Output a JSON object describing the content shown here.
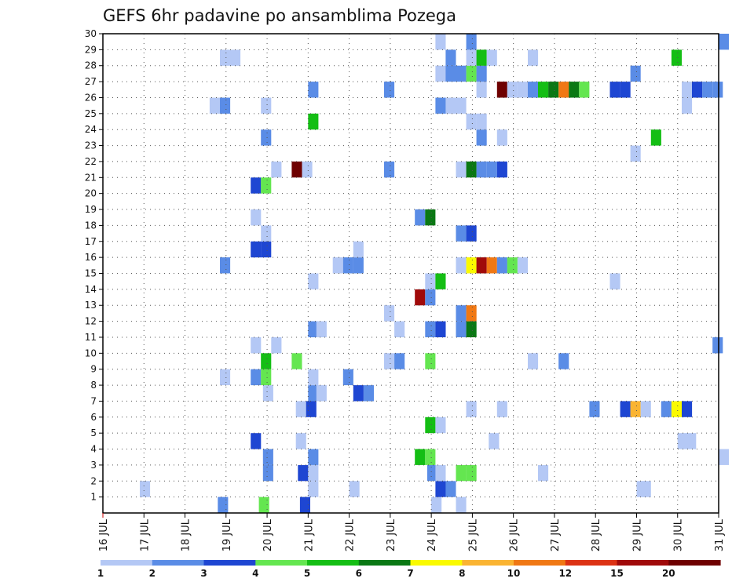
{
  "chart_data": {
    "type": "heatmap",
    "title": "GEFS 6hr padavine po ansamblima Pozega",
    "y": {
      "min": 1,
      "max": 30,
      "labels": [
        "1",
        "2",
        "3",
        "4",
        "5",
        "6",
        "7",
        "8",
        "9",
        "10",
        "11",
        "12",
        "13",
        "14",
        "15",
        "16",
        "17",
        "18",
        "19",
        "20",
        "21",
        "22",
        "23",
        "24",
        "25",
        "26",
        "27",
        "28",
        "29",
        "30"
      ]
    },
    "x": {
      "start_day": 16,
      "end_day": 31,
      "steps_per_day": 4,
      "labels": [
        "16 JUL",
        "17 JUL",
        "18 JUL",
        "19 JUL",
        "20 JUL",
        "21 JUL",
        "22 JUL",
        "23 JUL",
        "24 JUL",
        "25 JUL",
        "26 JUL",
        "27 JUL",
        "28 JUL",
        "29 JUL",
        "30 JUL",
        "31 JUL"
      ]
    },
    "grid": true,
    "colorbar": {
      "ticks": [
        "1",
        "2",
        "3",
        "4",
        "5",
        "6",
        "7",
        "8",
        "10",
        "12",
        "15",
        "20"
      ],
      "colors": [
        "#b4c8f5",
        "#5a8ce6",
        "#1e46d2",
        "#64e650",
        "#14be14",
        "#0a7814",
        "#fafa00",
        "#fab432",
        "#f07814",
        "#dc3214",
        "#a00a0a",
        "#6e0000"
      ]
    },
    "cells": [
      {
        "x": 18.8,
        "y": 0,
        "v": 2
      },
      {
        "x": 19.8,
        "y": 0,
        "v": 4
      },
      {
        "x": 20.8,
        "y": 0,
        "v": 3
      },
      {
        "x": 24.0,
        "y": 0,
        "v": 1
      },
      {
        "x": 24.6,
        "y": 0,
        "v": 1
      },
      {
        "x": 16.9,
        "y": 1,
        "v": 1
      },
      {
        "x": 21.0,
        "y": 1,
        "v": 1
      },
      {
        "x": 22.0,
        "y": 1,
        "v": 1
      },
      {
        "x": 24.1,
        "y": 1,
        "v": 3
      },
      {
        "x": 24.35,
        "y": 1,
        "v": 2
      },
      {
        "x": 29.0,
        "y": 1,
        "v": 1
      },
      {
        "x": 29.1,
        "y": 1,
        "v": 1
      },
      {
        "x": 19.9,
        "y": 2,
        "v": 2
      },
      {
        "x": 20.75,
        "y": 2,
        "v": 3
      },
      {
        "x": 21.0,
        "y": 2,
        "v": 1
      },
      {
        "x": 23.9,
        "y": 2,
        "v": 2
      },
      {
        "x": 24.1,
        "y": 2,
        "v": 1
      },
      {
        "x": 24.6,
        "y": 2,
        "v": 4
      },
      {
        "x": 24.85,
        "y": 2,
        "v": 4
      },
      {
        "x": 26.6,
        "y": 2,
        "v": 1
      },
      {
        "x": 19.9,
        "y": 3,
        "v": 2
      },
      {
        "x": 21.0,
        "y": 3,
        "v": 2
      },
      {
        "x": 23.6,
        "y": 3,
        "v": 5
      },
      {
        "x": 23.85,
        "y": 3,
        "v": 4
      },
      {
        "x": 31.0,
        "y": 3,
        "v": 1
      },
      {
        "x": 19.6,
        "y": 4,
        "v": 3
      },
      {
        "x": 20.7,
        "y": 4,
        "v": 1
      },
      {
        "x": 25.4,
        "y": 4,
        "v": 1
      },
      {
        "x": 30.0,
        "y": 4,
        "v": 1
      },
      {
        "x": 30.2,
        "y": 4,
        "v": 1
      },
      {
        "x": 23.85,
        "y": 5,
        "v": 5
      },
      {
        "x": 24.1,
        "y": 5,
        "v": 1
      },
      {
        "x": 20.7,
        "y": 6,
        "v": 1
      },
      {
        "x": 20.95,
        "y": 6,
        "v": 3
      },
      {
        "x": 24.85,
        "y": 6,
        "v": 1
      },
      {
        "x": 25.6,
        "y": 6,
        "v": 1
      },
      {
        "x": 27.85,
        "y": 6,
        "v": 2
      },
      {
        "x": 28.6,
        "y": 6,
        "v": 3
      },
      {
        "x": 28.85,
        "y": 6,
        "v": 8
      },
      {
        "x": 29.1,
        "y": 6,
        "v": 1
      },
      {
        "x": 29.6,
        "y": 6,
        "v": 2
      },
      {
        "x": 29.85,
        "y": 6,
        "v": 7
      },
      {
        "x": 30.1,
        "y": 6,
        "v": 3
      },
      {
        "x": 19.9,
        "y": 7,
        "v": 1
      },
      {
        "x": 21.0,
        "y": 7,
        "v": 2
      },
      {
        "x": 21.2,
        "y": 7,
        "v": 1
      },
      {
        "x": 22.1,
        "y": 7,
        "v": 3
      },
      {
        "x": 22.35,
        "y": 7,
        "v": 2
      },
      {
        "x": 18.85,
        "y": 8,
        "v": 1
      },
      {
        "x": 19.6,
        "y": 8,
        "v": 2
      },
      {
        "x": 19.85,
        "y": 8,
        "v": 4
      },
      {
        "x": 21.0,
        "y": 8,
        "v": 1
      },
      {
        "x": 21.85,
        "y": 8,
        "v": 2
      },
      {
        "x": 19.85,
        "y": 9,
        "v": 5
      },
      {
        "x": 20.6,
        "y": 9,
        "v": 4
      },
      {
        "x": 22.85,
        "y": 9,
        "v": 1
      },
      {
        "x": 23.1,
        "y": 9,
        "v": 2
      },
      {
        "x": 23.85,
        "y": 9,
        "v": 4
      },
      {
        "x": 26.35,
        "y": 9,
        "v": 1
      },
      {
        "x": 27.1,
        "y": 9,
        "v": 2
      },
      {
        "x": 19.6,
        "y": 10,
        "v": 1
      },
      {
        "x": 20.1,
        "y": 10,
        "v": 1
      },
      {
        "x": 30.85,
        "y": 10,
        "v": 2
      },
      {
        "x": 21.0,
        "y": 11,
        "v": 2
      },
      {
        "x": 21.2,
        "y": 11,
        "v": 1
      },
      {
        "x": 23.1,
        "y": 11,
        "v": 1
      },
      {
        "x": 23.85,
        "y": 11,
        "v": 2
      },
      {
        "x": 24.1,
        "y": 11,
        "v": 3
      },
      {
        "x": 24.6,
        "y": 11,
        "v": 2
      },
      {
        "x": 24.85,
        "y": 11,
        "v": 6
      },
      {
        "x": 22.85,
        "y": 12,
        "v": 1
      },
      {
        "x": 24.6,
        "y": 12,
        "v": 2
      },
      {
        "x": 24.85,
        "y": 12,
        "v": 10
      },
      {
        "x": 23.6,
        "y": 13,
        "v": 15
      },
      {
        "x": 23.85,
        "y": 13,
        "v": 2
      },
      {
        "x": 21.0,
        "y": 14,
        "v": 1
      },
      {
        "x": 23.85,
        "y": 14,
        "v": 1
      },
      {
        "x": 24.1,
        "y": 14,
        "v": 5
      },
      {
        "x": 28.35,
        "y": 14,
        "v": 1
      },
      {
        "x": 18.85,
        "y": 15,
        "v": 2
      },
      {
        "x": 21.6,
        "y": 15,
        "v": 1
      },
      {
        "x": 21.85,
        "y": 15,
        "v": 2
      },
      {
        "x": 22.1,
        "y": 15,
        "v": 2
      },
      {
        "x": 24.6,
        "y": 15,
        "v": 1
      },
      {
        "x": 24.85,
        "y": 15,
        "v": 7
      },
      {
        "x": 25.1,
        "y": 15,
        "v": 15
      },
      {
        "x": 25.35,
        "y": 15,
        "v": 10
      },
      {
        "x": 25.6,
        "y": 15,
        "v": 2
      },
      {
        "x": 25.85,
        "y": 15,
        "v": 4
      },
      {
        "x": 26.1,
        "y": 15,
        "v": 1
      },
      {
        "x": 22.1,
        "y": 16,
        "v": 1
      },
      {
        "x": 19.6,
        "y": 16,
        "v": 3
      },
      {
        "x": 19.85,
        "y": 16,
        "v": 3
      },
      {
        "x": 19.85,
        "y": 17,
        "v": 1
      },
      {
        "x": 24.6,
        "y": 17,
        "v": 2
      },
      {
        "x": 24.85,
        "y": 17,
        "v": 3
      },
      {
        "x": 19.6,
        "y": 18,
        "v": 1
      },
      {
        "x": 23.6,
        "y": 18,
        "v": 2
      },
      {
        "x": 23.85,
        "y": 18,
        "v": 6
      },
      {
        "x": 19.6,
        "y": 20,
        "v": 3
      },
      {
        "x": 19.85,
        "y": 20,
        "v": 4
      },
      {
        "x": 20.1,
        "y": 21,
        "v": 1
      },
      {
        "x": 20.6,
        "y": 21,
        "v": 20
      },
      {
        "x": 20.85,
        "y": 21,
        "v": 1
      },
      {
        "x": 22.85,
        "y": 21,
        "v": 2
      },
      {
        "x": 24.6,
        "y": 21,
        "v": 1
      },
      {
        "x": 24.85,
        "y": 21,
        "v": 6
      },
      {
        "x": 25.1,
        "y": 21,
        "v": 2
      },
      {
        "x": 25.35,
        "y": 21,
        "v": 2
      },
      {
        "x": 25.6,
        "y": 21,
        "v": 3
      },
      {
        "x": 28.85,
        "y": 22,
        "v": 1
      },
      {
        "x": 19.85,
        "y": 23,
        "v": 2
      },
      {
        "x": 25.1,
        "y": 23,
        "v": 2
      },
      {
        "x": 25.6,
        "y": 23,
        "v": 1
      },
      {
        "x": 29.35,
        "y": 23,
        "v": 5
      },
      {
        "x": 21.0,
        "y": 24,
        "v": 5
      },
      {
        "x": 24.85,
        "y": 24,
        "v": 1
      },
      {
        "x": 25.1,
        "y": 24,
        "v": 1
      },
      {
        "x": 18.6,
        "y": 25,
        "v": 1
      },
      {
        "x": 18.85,
        "y": 25,
        "v": 2
      },
      {
        "x": 19.85,
        "y": 25,
        "v": 1
      },
      {
        "x": 24.1,
        "y": 25,
        "v": 2
      },
      {
        "x": 24.35,
        "y": 25,
        "v": 1
      },
      {
        "x": 24.6,
        "y": 25,
        "v": 1
      },
      {
        "x": 30.1,
        "y": 25,
        "v": 1
      },
      {
        "x": 21.0,
        "y": 26,
        "v": 2
      },
      {
        "x": 22.85,
        "y": 26,
        "v": 2
      },
      {
        "x": 25.1,
        "y": 26,
        "v": 1
      },
      {
        "x": 25.6,
        "y": 26,
        "v": 20
      },
      {
        "x": 25.85,
        "y": 26,
        "v": 1
      },
      {
        "x": 26.1,
        "y": 26,
        "v": 1
      },
      {
        "x": 26.35,
        "y": 26,
        "v": 2
      },
      {
        "x": 26.6,
        "y": 26,
        "v": 5
      },
      {
        "x": 26.85,
        "y": 26,
        "v": 6
      },
      {
        "x": 27.1,
        "y": 26,
        "v": 10
      },
      {
        "x": 27.35,
        "y": 26,
        "v": 6
      },
      {
        "x": 27.6,
        "y": 26,
        "v": 4
      },
      {
        "x": 28.35,
        "y": 26,
        "v": 3
      },
      {
        "x": 28.6,
        "y": 26,
        "v": 3
      },
      {
        "x": 30.1,
        "y": 26,
        "v": 1
      },
      {
        "x": 30.35,
        "y": 26,
        "v": 3
      },
      {
        "x": 30.6,
        "y": 26,
        "v": 2
      },
      {
        "x": 30.85,
        "y": 26,
        "v": 2
      },
      {
        "x": 24.1,
        "y": 27,
        "v": 1
      },
      {
        "x": 24.35,
        "y": 27,
        "v": 2
      },
      {
        "x": 24.6,
        "y": 27,
        "v": 2
      },
      {
        "x": 24.85,
        "y": 27,
        "v": 4
      },
      {
        "x": 25.1,
        "y": 27,
        "v": 2
      },
      {
        "x": 28.85,
        "y": 27,
        "v": 2
      },
      {
        "x": 18.85,
        "y": 28,
        "v": 1
      },
      {
        "x": 19.1,
        "y": 28,
        "v": 1
      },
      {
        "x": 24.35,
        "y": 28,
        "v": 2
      },
      {
        "x": 24.85,
        "y": 28,
        "v": 1
      },
      {
        "x": 25.1,
        "y": 28,
        "v": 5
      },
      {
        "x": 25.35,
        "y": 28,
        "v": 1
      },
      {
        "x": 26.35,
        "y": 28,
        "v": 1
      },
      {
        "x": 29.85,
        "y": 28,
        "v": 5
      },
      {
        "x": 24.1,
        "y": 29,
        "v": 1
      },
      {
        "x": 24.85,
        "y": 29,
        "v": 2
      },
      {
        "x": 31.0,
        "y": 29,
        "v": 2
      }
    ]
  }
}
